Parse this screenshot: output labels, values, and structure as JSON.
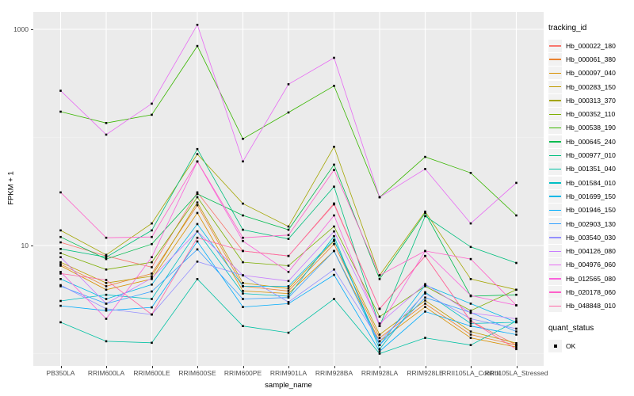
{
  "chart_data": {
    "type": "line",
    "xlabel": "sample_name",
    "ylabel": "FPKM + 1",
    "y_scale": "log10",
    "grid": true,
    "panel_color": "#EBEBEB",
    "point_color": "#000000",
    "legend_position": "right",
    "y_ticks": [
      {
        "value": 10,
        "label": "10"
      },
      {
        "value": 1000,
        "label": "1000"
      }
    ],
    "y_minor_breaks": [
      1,
      100
    ],
    "ylim_log": [
      0.77,
      3.28
    ],
    "categories": [
      "PB350LA",
      "RRIM600LA",
      "RRIM600LE",
      "RRIM600SE",
      "RRIM600PE",
      "RRIM901LA",
      "RRIM928BA",
      "RRIM928LA",
      "RRIM928LE",
      "RRII105LA_Control",
      "RRII105LA_Stressed"
    ],
    "legend_title": "tracking_id",
    "series": [
      {
        "name": "Hb_000022_180",
        "color": "#F8766D",
        "values": [
          10.7,
          8.0,
          6.3,
          31,
          8.9,
          8.0,
          24.5,
          2.6,
          8.0,
          2.0,
          1.2
        ]
      },
      {
        "name": "Hb_000061_380",
        "color": "#EA8331",
        "values": [
          6.7,
          4.2,
          5.5,
          23.6,
          4.2,
          3.8,
          10.3,
          1.4,
          2.9,
          1.5,
          1.2
        ]
      },
      {
        "name": "Hb_000097_040",
        "color": "#D89000",
        "values": [
          6.5,
          3.9,
          4.9,
          20,
          3.8,
          3.6,
          8.9,
          1.3,
          2.7,
          1.4,
          1.15
        ]
      },
      {
        "name": "Hb_000283_150",
        "color": "#C09B00",
        "values": [
          7.0,
          4.5,
          5.2,
          25,
          4.5,
          4.0,
          11,
          1.5,
          3.1,
          1.6,
          1.25
        ]
      },
      {
        "name": "Hb_000313_370",
        "color": "#A3A500",
        "values": [
          13.8,
          8.2,
          16,
          70,
          24.4,
          15,
          82,
          5.3,
          20.6,
          4.9,
          3.9
        ]
      },
      {
        "name": "Hb_000352_110",
        "color": "#7CAE00",
        "values": [
          8.5,
          6.0,
          7.0,
          28,
          7.0,
          6.5,
          15,
          2.2,
          4.2,
          2.5,
          3.9
        ]
      },
      {
        "name": "Hb_000538_190",
        "color": "#39B600",
        "values": [
          173,
          136,
          162,
          700,
          97,
          170,
          300,
          28,
          66,
          47,
          19
        ]
      },
      {
        "name": "Hb_000645_240",
        "color": "#00BB4E",
        "values": [
          12,
          7.5,
          10.3,
          30,
          19,
          14,
          56,
          4.9,
          20,
          3.4,
          3.5
        ]
      },
      {
        "name": "Hb_000977_010",
        "color": "#00BF7D",
        "values": [
          9.3,
          7.8,
          13.8,
          78,
          14,
          11.5,
          35,
          1.8,
          18.7,
          9.7,
          6.9
        ]
      },
      {
        "name": "Hb_001351_040",
        "color": "#00C1A3",
        "values": [
          1.95,
          1.3,
          1.26,
          4.9,
          1.8,
          1.56,
          3.2,
          1.0,
          1.4,
          1.2,
          2.0
        ]
      },
      {
        "name": "Hb_001584_010",
        "color": "#00BFC4",
        "values": [
          3.07,
          3.5,
          3.2,
          13.5,
          3.6,
          3.4,
          12.2,
          1.1,
          3.7,
          1.9,
          1.95
        ]
      },
      {
        "name": "Hb_001699_150",
        "color": "#00B8E7",
        "values": [
          4.9,
          3.2,
          4.35,
          15.8,
          4.2,
          4.2,
          11.3,
          1.2,
          4.3,
          2.9,
          1.95
        ]
      },
      {
        "name": "Hb_001946_150",
        "color": "#00ACFC",
        "values": [
          2.77,
          2.5,
          2.68,
          10.9,
          2.7,
          2.9,
          5.35,
          1.05,
          2.45,
          1.8,
          1.5
        ]
      },
      {
        "name": "Hb_002903_130",
        "color": "#35A2FF",
        "values": [
          4.2,
          2.9,
          3.76,
          9.2,
          3.2,
          3.3,
          8.9,
          1.2,
          3.3,
          2.4,
          1.6
        ]
      },
      {
        "name": "Hb_003540_030",
        "color": "#9590FF",
        "values": [
          4.3,
          2.6,
          2.3,
          7.1,
          5.3,
          3.0,
          6.0,
          1.3,
          3.6,
          2.1,
          1.7
        ]
      },
      {
        "name": "Hb_004126_080",
        "color": "#C77CFF",
        "values": [
          7.8,
          2.9,
          5.0,
          13.5,
          5.3,
          4.7,
          13.5,
          1.9,
          4.4,
          2.38,
          2.1
        ]
      },
      {
        "name": "Hb_004976_060",
        "color": "#E76BF3",
        "values": [
          270,
          106,
          205,
          1100,
          60,
          310,
          545,
          28,
          51,
          16,
          38
        ]
      },
      {
        "name": "Hb_012565_080",
        "color": "#FA62DB",
        "values": [
          5.7,
          2.1,
          7.8,
          59.8,
          11,
          5.7,
          19,
          1.8,
          8.9,
          3.45,
          2.8
        ]
      },
      {
        "name": "Hb_020178_060",
        "color": "#FF61C9",
        "values": [
          31,
          11.8,
          12,
          60,
          11.8,
          12.5,
          50,
          5.3,
          8.9,
          7.5,
          2.8
        ]
      },
      {
        "name": "Hb_048848_010",
        "color": "#FF67A4",
        "values": [
          5.5,
          4.8,
          2.3,
          11.8,
          8.9,
          8.0,
          24,
          2.6,
          8.0,
          2.0,
          1.1
        ]
      }
    ]
  },
  "legend2": {
    "title": "quant_status",
    "items": [
      {
        "label": "OK"
      }
    ]
  }
}
